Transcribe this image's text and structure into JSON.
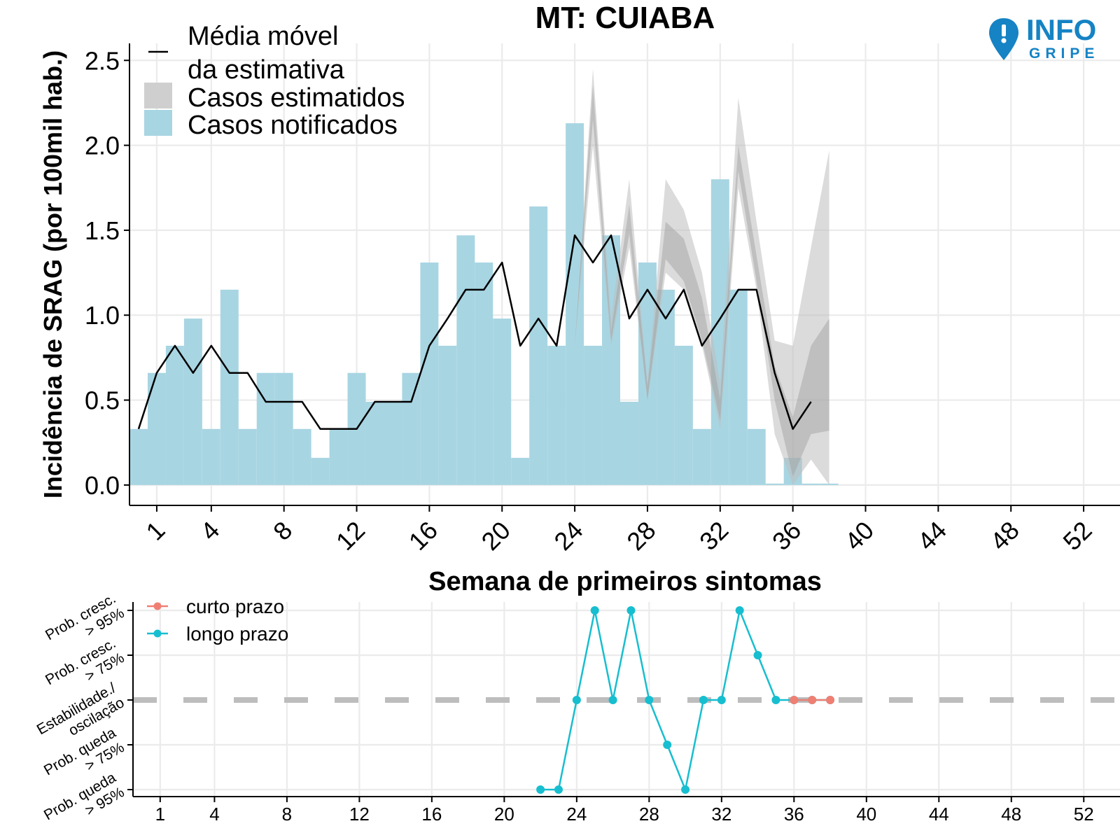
{
  "chart_data": [
    {
      "type": "bar",
      "title": "MT: CUIABA",
      "xlabel": "Semana de primeiros sintomas",
      "ylabel": "Incidência de SRAG (por 100mil hab.)",
      "xlim": [
        -0.5,
        54
      ],
      "ylim": [
        -0.12,
        2.6
      ],
      "xticks": [
        1,
        4,
        8,
        12,
        16,
        20,
        24,
        28,
        32,
        36,
        40,
        44,
        48,
        52
      ],
      "yticks": [
        0.0,
        0.5,
        1.0,
        1.5,
        2.0,
        2.5
      ],
      "ytick_labels": [
        "0.0",
        "0.5",
        "1.0",
        "1.5",
        "2.0",
        "2.5"
      ],
      "grid": true,
      "legend_position": "top-left",
      "legend": {
        "line_label_1": "Média móvel",
        "line_label_2": "da estimativa",
        "estimated_label": "Casos estimatidos",
        "notified_label": "Casos notificados"
      },
      "series": [
        {
          "name": "Casos notificados",
          "color": "#a8d5e2",
          "x": [
            0,
            1,
            2,
            3,
            4,
            5,
            6,
            7,
            8,
            9,
            10,
            11,
            12,
            13,
            14,
            15,
            16,
            17,
            18,
            19,
            20,
            21,
            22,
            23,
            24,
            25,
            26,
            27,
            28,
            29,
            30,
            31,
            32,
            33,
            34,
            35,
            36,
            37,
            38
          ],
          "values": [
            0.33,
            0.66,
            0.82,
            0.98,
            0.33,
            1.15,
            0.33,
            0.66,
            0.66,
            0.33,
            0.16,
            0.33,
            0.66,
            0.49,
            0.49,
            0.66,
            1.31,
            0.82,
            1.47,
            1.31,
            0.98,
            0.16,
            1.64,
            0.82,
            2.13,
            0.82,
            1.47,
            0.49,
            1.31,
            1.15,
            0.82,
            0.33,
            1.8,
            1.15,
            0.33,
            0.0,
            0.16,
            0.0,
            0.0
          ]
        },
        {
          "name": "Casos estimatidos",
          "color": "#c8c8c8",
          "x": [
            23,
            24,
            25,
            26,
            27,
            28,
            29,
            30,
            31,
            32,
            33,
            34,
            35,
            36,
            37,
            38
          ],
          "lower": [
            0.82,
            2.0,
            0.82,
            1.4,
            0.5,
            1.25,
            1.15,
            0.82,
            0.33,
            1.75,
            1.15,
            0.3,
            0.0,
            0.15,
            0.0
          ],
          "upper": [
            0.82,
            2.45,
            0.98,
            1.8,
            0.6,
            1.8,
            1.62,
            1.25,
            0.6,
            2.28,
            1.55,
            0.85,
            0.82,
            1.4,
            1.97
          ],
          "inner_lower": [
            0.82,
            2.15,
            0.85,
            1.48,
            0.5,
            1.33,
            1.2,
            0.85,
            0.38,
            1.85,
            1.2,
            0.5,
            0.05,
            0.3,
            0.32
          ],
          "inner_upper": [
            0.82,
            2.35,
            0.9,
            1.65,
            0.58,
            1.55,
            1.45,
            1.1,
            0.5,
            2.0,
            1.35,
            0.7,
            0.4,
            0.82,
            0.98
          ],
          "x_band": [
            24,
            25,
            26,
            27,
            28,
            29,
            30,
            31,
            32,
            33,
            34,
            35,
            36,
            37,
            38
          ]
        },
        {
          "name": "Média móvel da estimativa",
          "color": "#000000",
          "x": [
            0,
            1,
            2,
            3,
            4,
            5,
            6,
            7,
            8,
            9,
            10,
            11,
            12,
            13,
            14,
            15,
            16,
            17,
            18,
            19,
            20,
            21,
            22,
            23,
            24,
            25,
            26,
            27,
            28,
            29,
            30,
            31,
            32,
            33,
            34,
            35,
            36,
            37
          ],
          "values": [
            0.33,
            0.66,
            0.82,
            0.66,
            0.82,
            0.66,
            0.66,
            0.49,
            0.49,
            0.49,
            0.33,
            0.33,
            0.33,
            0.49,
            0.49,
            0.49,
            0.82,
            0.98,
            1.15,
            1.15,
            1.31,
            0.82,
            0.98,
            0.82,
            1.47,
            1.31,
            1.47,
            0.98,
            1.15,
            0.98,
            1.15,
            0.82,
            0.98,
            1.15,
            1.15,
            0.66,
            0.33,
            0.49
          ]
        }
      ]
    },
    {
      "type": "line",
      "title": "",
      "xlabel": "",
      "ylabel": "",
      "xlim": [
        -0.5,
        54
      ],
      "xticks": [
        1,
        4,
        8,
        12,
        16,
        20,
        24,
        28,
        32,
        36,
        40,
        44,
        48,
        52
      ],
      "levels": [
        2,
        1,
        0,
        -1,
        -2
      ],
      "level_labels": [
        [
          "Prob. cresc.",
          "> 95%"
        ],
        [
          "Prob. cresc.",
          "> 75%"
        ],
        [
          "Estabilidade./",
          "oscilação"
        ],
        [
          "Prob. queda",
          "> 75%"
        ],
        [
          "Prob. queda",
          "> 95%"
        ]
      ],
      "legend_position": "top-left",
      "series": [
        {
          "name": "longo prazo",
          "color": "#17becf",
          "x": [
            22,
            23,
            24,
            25,
            26,
            27,
            28,
            29,
            30,
            31,
            32,
            33,
            34,
            35,
            36,
            37,
            38
          ],
          "values": [
            -2,
            -2,
            0,
            2,
            0,
            2,
            0,
            -1,
            -2,
            0,
            0,
            2,
            1,
            0,
            0,
            0,
            0
          ]
        },
        {
          "name": "curto prazo",
          "color": "#f07f73",
          "x": [
            36,
            37,
            38
          ],
          "values": [
            0,
            0,
            0
          ]
        }
      ]
    }
  ],
  "logo": {
    "word_top": "INFO",
    "word_bottom": "GRIPE",
    "color": "#1583c4"
  }
}
